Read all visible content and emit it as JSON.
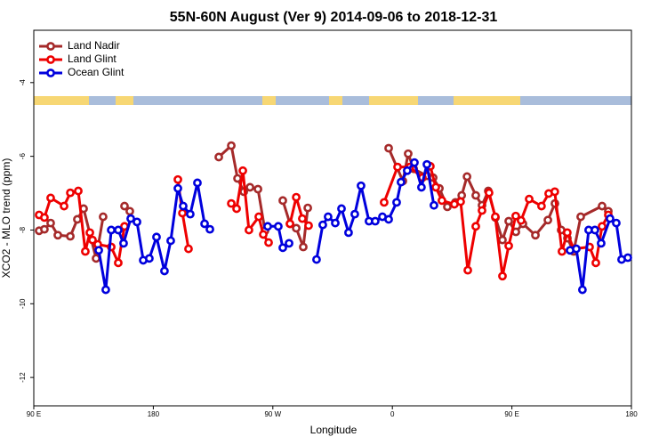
{
  "chart_data": {
    "type": "line",
    "title": "55N-60N August (Ver 9)   2014-09-06 to 2018-12-31",
    "xlabel": "Longitude",
    "ylabel": "XCO2 - MLO trend (ppm)",
    "xlim": [
      90,
      540
    ],
    "ylim": [
      -12.77,
      -2.58
    ],
    "xticks": [
      {
        "value": 90,
        "label": "90 E"
      },
      180,
      {
        "value": 270,
        "label": "90 W"
      },
      {
        "value": 360,
        "label": "0"
      },
      {
        "value": 450,
        "label": "90 E"
      },
      {
        "value": 540,
        "label": "180"
      }
    ],
    "yticks": [
      -12,
      -10,
      -8,
      -6,
      -4
    ],
    "legend": "upper left",
    "series": [
      {
        "name": "Land Nadir",
        "color": "#a52a2a",
        "x": [
          94.0,
          98.0,
          102.7,
          108.1,
          117.5,
          122.8,
          127.5,
          136.9,
          142.2,
          null,
          158.3,
          162.3,
          null,
          229.3,
          238.7,
          243.4,
          248.1,
          252.8,
          258.8,
          264.1,
          null,
          277.5,
          282.9,
          287.6,
          292.9,
          296.3,
          null,
          357.2,
          367.9,
          371.9,
          376.0,
          386.0,
          390.7,
          395.4,
          401.4,
          407.5,
          412.2,
          416.2,
          422.8,
          427.5,
          432.2,
          437.6,
          442.9,
          447.6,
          453.0,
          458.3,
          467.7,
          477.1,
          482.4,
          487.1,
          491.8,
          496.5,
          501.8,
          517.9,
          522.6
        ],
        "values": [
          -8.02,
          -7.98,
          -7.81,
          -8.14,
          -8.17,
          -7.71,
          -7.42,
          -8.77,
          -7.64,
          null,
          -7.35,
          -7.49,
          null,
          -6.02,
          -5.71,
          -6.6,
          -6.96,
          -6.84,
          -6.89,
          -8.02,
          null,
          -7.2,
          -7.83,
          -7.95,
          -8.46,
          -7.4,
          null,
          -5.78,
          -6.67,
          -5.93,
          -6.34,
          -6.53,
          -6.58,
          -6.87,
          -7.37,
          -7.25,
          -7.06,
          -6.55,
          -7.06,
          -7.33,
          -6.94,
          -7.66,
          -8.27,
          -7.76,
          -8.05,
          -7.83,
          -8.14,
          -7.73,
          -7.28,
          -8.0,
          -8.22,
          -8.58,
          -7.64,
          -7.35,
          -7.49
        ]
      },
      {
        "name": "Land Glint",
        "color": "#ee0000",
        "x": [
          94.0,
          98.0,
          102.7,
          112.8,
          117.5,
          123.5,
          128.8,
          132.2,
          134.2,
          138.2,
          148.3,
          153.6,
          158.3,
          null,
          198.5,
          201.9,
          206.5,
          null,
          238.7,
          242.7,
          247.4,
          252.0,
          259.4,
          262.8,
          266.8,
          null,
          282.9,
          287.6,
          292.2,
          296.9,
          null,
          353.8,
          363.9,
          373.2,
          382.6,
          388.6,
          392.7,
          397.3,
          406.7,
          411.4,
          416.8,
          422.8,
          427.5,
          432.8,
          437.5,
          442.9,
          447.6,
          452.9,
          456.9,
          463.0,
          472.3,
          477.7,
          482.3,
          487.7,
          491.7,
          496.4,
          508.5,
          513.2,
          517.9,
          522.6
        ],
        "values": [
          -7.59,
          -7.66,
          -7.13,
          -7.35,
          -6.99,
          -6.94,
          -8.58,
          -8.07,
          -8.27,
          -8.39,
          -8.46,
          -8.89,
          -7.9,
          null,
          -6.63,
          -7.54,
          -8.51,
          null,
          -7.28,
          -7.42,
          -6.39,
          -8.0,
          -7.64,
          -8.12,
          -8.34,
          null,
          -7.83,
          -7.11,
          -7.69,
          -7.88,
          null,
          -7.25,
          -6.29,
          -6.29,
          -6.58,
          -6.27,
          -6.84,
          -7.2,
          -7.3,
          -7.23,
          -9.09,
          -7.9,
          -7.47,
          -6.99,
          -7.64,
          -9.25,
          -8.43,
          -7.62,
          -7.74,
          -7.16,
          -7.35,
          -7.01,
          -6.96,
          -8.58,
          -8.07,
          -8.51,
          -8.46,
          -8.89,
          -7.9,
          -7.59
        ]
      },
      {
        "name": "Ocean Glint",
        "color": "#0000dd",
        "x": [
          138.9,
          144.2,
          148.3,
          153.6,
          157.6,
          163.0,
          167.7,
          172.4,
          177.0,
          182.4,
          188.4,
          193.1,
          198.5,
          202.5,
          207.8,
          213.2,
          218.6,
          222.6,
          null,
          266.1,
          274.1,
          277.5,
          282.2,
          null,
          302.9,
          307.6,
          311.6,
          317.0,
          321.7,
          327.0,
          331.7,
          336.4,
          342.4,
          347.1,
          352.5,
          357.2,
          363.2,
          366.5,
          371.2,
          376.6,
          381.9,
          386.0,
          391.3,
          null,
          493.8,
          498.5,
          503.1,
          507.8,
          512.5,
          517.2,
          523.9,
          528.6,
          532.6,
          537.3
        ],
        "values": [
          -8.55,
          -9.62,
          -8.0,
          -8.0,
          -8.36,
          -7.69,
          -7.78,
          -8.82,
          -8.77,
          -8.19,
          -9.11,
          -8.29,
          -6.87,
          -7.35,
          -7.57,
          -6.72,
          -7.83,
          -7.98,
          null,
          -7.9,
          -7.9,
          -8.48,
          -8.36,
          null,
          -8.8,
          -7.86,
          -7.64,
          -7.81,
          -7.42,
          -8.07,
          -7.57,
          -6.8,
          -7.76,
          -7.76,
          -7.64,
          -7.71,
          -7.25,
          -6.7,
          -6.39,
          -6.17,
          -6.84,
          -6.22,
          -7.33,
          null,
          -8.55,
          -8.51,
          -9.62,
          -8.0,
          -8.0,
          -8.36,
          -7.69,
          -7.81,
          -8.8,
          -8.75
        ]
      }
    ]
  }
}
